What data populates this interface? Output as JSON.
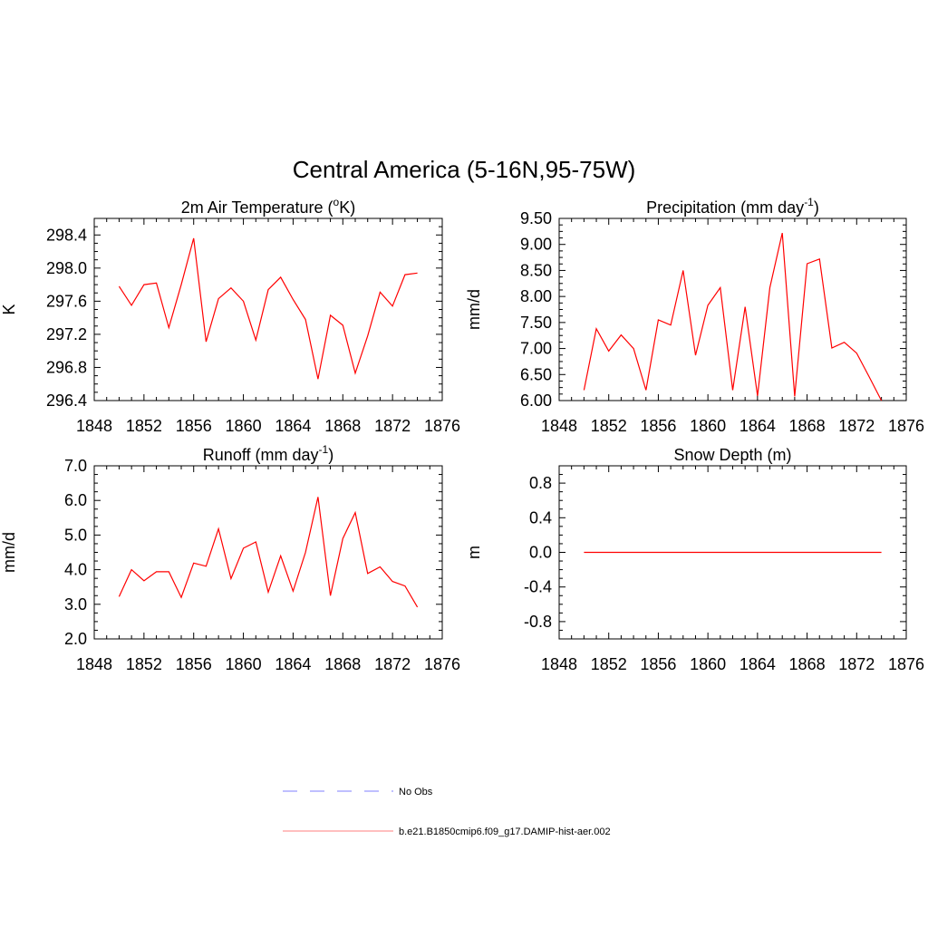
{
  "figure": {
    "title": "Central America (5-16N,95-75W)"
  },
  "legend": {
    "placement": "bottom-center",
    "items": [
      {
        "label": "No Obs",
        "color": "#9999ff",
        "dashed": true
      },
      {
        "label": "b.e21.B1850cmip6.f09_g17.DAMIP-hist-aer.002",
        "color": "#ff9999",
        "dashed": false
      }
    ]
  },
  "chart_data": [
    {
      "id": "temperature",
      "type": "line",
      "title": "2m Air Temperature (",
      "title_sup": "o",
      "title_suffix": "K)",
      "ylabel": "K",
      "xlim": [
        1848,
        1876
      ],
      "ylim": [
        296.4,
        298.6
      ],
      "xticks": [
        "1848",
        "1852",
        "1856",
        "1860",
        "1864",
        "1868",
        "1872",
        "1876"
      ],
      "yticks": [
        "296.4",
        "296.8",
        "297.2",
        "297.6",
        "298.0",
        "298.4"
      ],
      "grid": false,
      "series": [
        {
          "color": "#ff0000",
          "x": [
            1850,
            1851,
            1852,
            1853,
            1854,
            1855,
            1856,
            1857,
            1858,
            1859,
            1860,
            1861,
            1862,
            1863,
            1864,
            1865,
            1866,
            1867,
            1868,
            1869,
            1870,
            1871,
            1872,
            1873,
            1874
          ],
          "y": [
            297.78,
            297.55,
            297.8,
            297.82,
            297.28,
            297.8,
            298.36,
            297.11,
            297.63,
            297.76,
            297.6,
            297.13,
            297.74,
            297.89,
            297.62,
            297.38,
            296.66,
            297.43,
            297.31,
            296.73,
            297.18,
            297.71,
            297.54,
            297.92,
            297.94
          ]
        }
      ]
    },
    {
      "id": "precipitation",
      "type": "line",
      "title": "Precipitation (mm day",
      "title_sup": "-1",
      "title_suffix": ")",
      "ylabel": "mm/d",
      "xlim": [
        1848,
        1876
      ],
      "ylim": [
        6.0,
        9.5
      ],
      "xticks": [
        "1848",
        "1852",
        "1856",
        "1860",
        "1864",
        "1868",
        "1872",
        "1876"
      ],
      "yticks": [
        "6.00",
        "6.50",
        "7.00",
        "7.50",
        "8.00",
        "8.50",
        "9.00",
        "9.50"
      ],
      "grid": false,
      "series": [
        {
          "color": "#ff0000",
          "x": [
            1850,
            1851,
            1852,
            1853,
            1854,
            1855,
            1856,
            1857,
            1858,
            1859,
            1860,
            1861,
            1862,
            1863,
            1864,
            1865,
            1866,
            1867,
            1868,
            1869,
            1870,
            1871,
            1872,
            1873,
            1874
          ],
          "y": [
            6.2,
            7.38,
            6.95,
            7.26,
            7.0,
            6.2,
            7.55,
            7.45,
            8.5,
            6.87,
            7.83,
            8.17,
            6.2,
            7.8,
            6.09,
            8.17,
            9.22,
            6.08,
            8.63,
            8.72,
            7.01,
            7.12,
            6.91,
            6.46,
            6.0
          ]
        }
      ]
    },
    {
      "id": "runoff",
      "type": "line",
      "title": "Runoff (mm day",
      "title_sup": "-1",
      "title_suffix": ")",
      "ylabel": "mm/d",
      "xlim": [
        1848,
        1876
      ],
      "ylim": [
        2.0,
        7.0
      ],
      "xticks": [
        "1848",
        "1852",
        "1856",
        "1860",
        "1864",
        "1868",
        "1872",
        "1876"
      ],
      "yticks": [
        "2.0",
        "3.0",
        "4.0",
        "5.0",
        "6.0",
        "7.0"
      ],
      "grid": false,
      "series": [
        {
          "color": "#ff0000",
          "x": [
            1850,
            1851,
            1852,
            1853,
            1854,
            1855,
            1856,
            1857,
            1858,
            1859,
            1860,
            1861,
            1862,
            1863,
            1864,
            1865,
            1866,
            1867,
            1868,
            1869,
            1870,
            1871,
            1872,
            1873,
            1874
          ],
          "y": [
            3.22,
            4.0,
            3.68,
            3.94,
            3.94,
            3.2,
            4.19,
            4.1,
            5.18,
            3.74,
            4.62,
            4.8,
            3.35,
            4.4,
            3.38,
            4.5,
            6.1,
            3.25,
            4.9,
            5.65,
            3.89,
            4.08,
            3.66,
            3.53,
            2.92
          ]
        }
      ]
    },
    {
      "id": "snow-depth",
      "type": "line",
      "title": "Snow Depth (m)",
      "title_sup": "",
      "title_suffix": "",
      "ylabel": "m",
      "xlim": [
        1848,
        1876
      ],
      "ylim": [
        -1.0,
        1.0
      ],
      "xticks": [
        "1848",
        "1852",
        "1856",
        "1860",
        "1864",
        "1868",
        "1872",
        "1876"
      ],
      "yticks": [
        "-0.8",
        "-0.4",
        "0.0",
        "0.4",
        "0.8"
      ],
      "grid": false,
      "series": [
        {
          "color": "#ff0000",
          "x": [
            1850,
            1851,
            1852,
            1853,
            1854,
            1855,
            1856,
            1857,
            1858,
            1859,
            1860,
            1861,
            1862,
            1863,
            1864,
            1865,
            1866,
            1867,
            1868,
            1869,
            1870,
            1871,
            1872,
            1873,
            1874
          ],
          "y": [
            0,
            0,
            0,
            0,
            0,
            0,
            0,
            0,
            0,
            0,
            0,
            0,
            0,
            0,
            0,
            0,
            0,
            0,
            0,
            0,
            0,
            0,
            0,
            0,
            0
          ]
        }
      ]
    }
  ]
}
